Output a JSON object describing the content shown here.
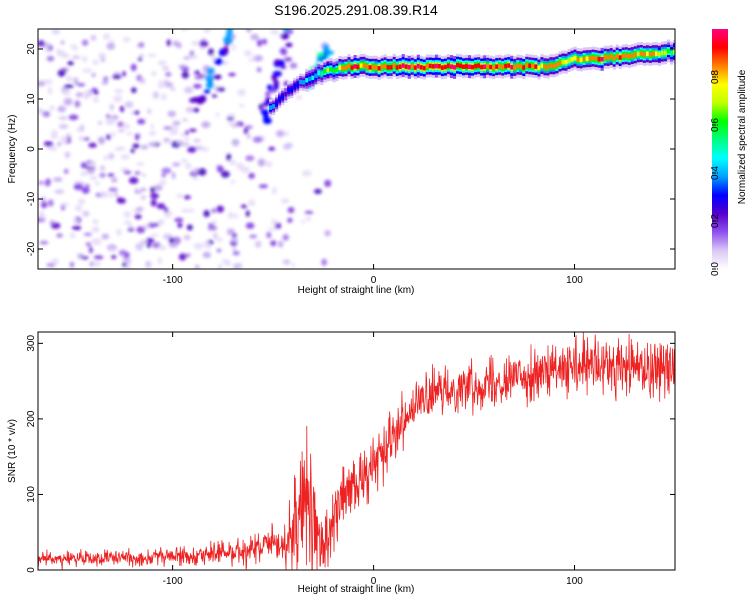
{
  "title": "S196.2025.291.08.39.R14",
  "chart_data": [
    {
      "type": "heatmap",
      "name": "spectrogram",
      "xlabel": "Height of straight line (km)",
      "ylabel": "Frequency (Hz)",
      "xlim": [
        -167,
        150
      ],
      "ylim": [
        -24,
        24
      ],
      "xticks": [
        -100,
        0,
        100
      ],
      "xtick_labels": [
        "-100",
        "0",
        "100"
      ],
      "yticks": [
        20,
        10,
        0,
        -10,
        -20
      ],
      "ytick_labels": [
        "20",
        "10",
        "0",
        "-10",
        "-20"
      ],
      "colorbar": {
        "label": "Normalized spectral amplitude",
        "range": [
          0,
          1
        ],
        "ticks": [
          0.0,
          0.2,
          0.4,
          0.6,
          0.8
        ],
        "tick_labels": [
          "0.0",
          "0.2",
          "0.4",
          "0.6",
          "0.8"
        ],
        "colors": [
          "#ffffff",
          "#d9c8f5",
          "#9050ee",
          "#5500cc",
          "#0000ff",
          "#00a0ff",
          "#00ffff",
          "#00ff80",
          "#00ff00",
          "#c0ff00",
          "#ffff00",
          "#ff8000",
          "#ff0000",
          "#ff0080"
        ]
      },
      "ridge": {
        "x": [
          -52,
          -45,
          -40,
          -35,
          -30,
          -25,
          -20,
          -15,
          -10,
          -5,
          0,
          20,
          40,
          60,
          80,
          90,
          95,
          100,
          110,
          120,
          130,
          140,
          150
        ],
        "y": [
          8,
          11,
          12.5,
          13.5,
          14.5,
          15.5,
          16,
          16.5,
          16.5,
          16.5,
          16.5,
          16.5,
          16.5,
          16.5,
          16.5,
          16.7,
          17.5,
          18,
          18,
          18.5,
          18.7,
          19,
          19.5
        ],
        "amplitude": [
          0.25,
          0.3,
          0.35,
          0.4,
          0.45,
          0.55,
          0.7,
          0.8,
          0.85,
          0.85,
          0.9,
          0.95,
          0.95,
          0.9,
          0.85,
          0.85,
          0.8,
          0.85,
          0.85,
          0.9,
          0.85,
          0.75,
          0.55
        ]
      }
    },
    {
      "type": "line",
      "name": "snr",
      "xlabel": "Height of straight line (km)",
      "ylabel": "SNR (10 * v/v)",
      "xlim": [
        -167,
        150
      ],
      "ylim": [
        0,
        315
      ],
      "xticks": [
        -100,
        0,
        100
      ],
      "xtick_labels": [
        "-100",
        "0",
        "100"
      ],
      "yticks": [
        0,
        100,
        200,
        300
      ],
      "ytick_labels": [
        "0",
        "100",
        "200",
        "300"
      ],
      "color": "#ee2222",
      "baseline": {
        "x": [
          -167,
          -150,
          -120,
          -100,
          -80,
          -65,
          -55,
          -48,
          -42,
          -38,
          -35,
          -32,
          -28,
          -25,
          -20,
          -15,
          -10,
          -5,
          0,
          5,
          10,
          15,
          20,
          25,
          30,
          40,
          50,
          60,
          70,
          80,
          90,
          100,
          110,
          120,
          130,
          140,
          150
        ],
        "y": [
          15,
          15,
          16,
          18,
          22,
          25,
          28,
          32,
          40,
          70,
          100,
          60,
          40,
          35,
          60,
          100,
          110,
          120,
          140,
          160,
          185,
          200,
          215,
          225,
          232,
          240,
          245,
          250,
          255,
          258,
          262,
          265,
          268,
          268,
          270,
          268,
          270
        ]
      },
      "noise_envelope": {
        "x": [
          -167,
          -120,
          -80,
          -60,
          -45,
          -38,
          -35,
          -32,
          -28,
          -20,
          -10,
          0,
          10,
          20,
          30,
          50,
          80,
          100,
          120,
          150
        ],
        "y": [
          5,
          5,
          7,
          10,
          14,
          40,
          55,
          45,
          28,
          22,
          20,
          18,
          18,
          16,
          14,
          15,
          16,
          18,
          22,
          20
        ]
      }
    }
  ]
}
